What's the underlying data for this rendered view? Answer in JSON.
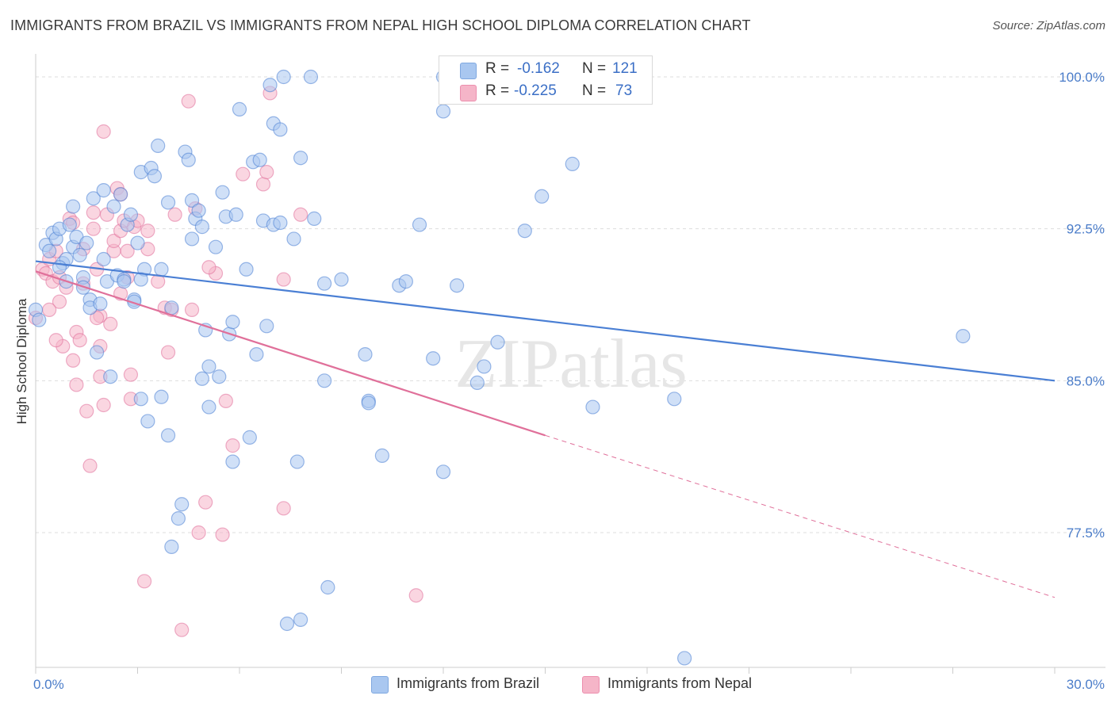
{
  "title": "IMMIGRANTS FROM BRAZIL VS IMMIGRANTS FROM NEPAL HIGH SCHOOL DIPLOMA CORRELATION CHART",
  "source": "Source: ZipAtlas.com",
  "watermark": "ZIPatlas",
  "stats": {
    "r_label": "R =",
    "n_label": "N =",
    "rows": [
      {
        "name": "Immigrants from Brazil",
        "r": "-0.162",
        "n": "121",
        "color": "#a9c7f0"
      },
      {
        "name": "Immigrants from Nepal",
        "r": "-0.225",
        "n": "73",
        "color": "#f5b5c8"
      }
    ]
  },
  "legend": [
    {
      "label": "Immigrants from Brazil",
      "color": "#a9c7f0"
    },
    {
      "label": "Immigrants from Nepal",
      "color": "#f5b5c8"
    }
  ],
  "chart_data": {
    "type": "scatter",
    "title": "IMMIGRANTS FROM BRAZIL VS IMMIGRANTS FROM NEPAL HIGH SCHOOL DIPLOMA CORRELATION CHART",
    "xlabel": "",
    "ylabel": "High School Diploma",
    "xlim": [
      0,
      30
    ],
    "ylim": [
      70.3,
      101.0
    ],
    "x_tick_labels": [
      {
        "value": 0,
        "label": "0.0%"
      },
      {
        "value": 30,
        "label": "30.0%"
      }
    ],
    "y_tick_labels": [
      {
        "value": 100,
        "label": "100.0%"
      },
      {
        "value": 92.5,
        "label": "92.5%"
      },
      {
        "value": 85,
        "label": "85.0%"
      },
      {
        "value": 77.5,
        "label": "77.5%"
      }
    ],
    "grid": true,
    "series": [
      {
        "name": "Immigrants from Brazil",
        "color": "#4a7fd4",
        "fill": "#a9c7f0",
        "trend": {
          "x0": 0,
          "y0": 90.9,
          "x1": 30,
          "y1": 85.0
        },
        "points": [
          [
            0.0,
            88.5
          ],
          [
            0.1,
            88.0
          ],
          [
            0.3,
            91.7
          ],
          [
            0.4,
            91.4
          ],
          [
            0.5,
            92.3
          ],
          [
            0.6,
            92.0
          ],
          [
            0.7,
            92.5
          ],
          [
            0.8,
            90.8
          ],
          [
            0.9,
            91.0
          ],
          [
            0.9,
            89.9
          ],
          [
            1.0,
            92.7
          ],
          [
            1.1,
            93.6
          ],
          [
            1.1,
            91.6
          ],
          [
            1.2,
            92.1
          ],
          [
            1.3,
            91.2
          ],
          [
            1.4,
            90.1
          ],
          [
            1.5,
            91.8
          ],
          [
            1.6,
            89.0
          ],
          [
            1.6,
            88.6
          ],
          [
            1.7,
            94.0
          ],
          [
            1.8,
            86.4
          ],
          [
            1.9,
            88.8
          ],
          [
            2.0,
            94.4
          ],
          [
            2.0,
            91.0
          ],
          [
            2.1,
            89.9
          ],
          [
            2.3,
            93.6
          ],
          [
            2.4,
            90.2
          ],
          [
            2.5,
            94.2
          ],
          [
            2.6,
            90.0
          ],
          [
            2.6,
            89.9
          ],
          [
            2.7,
            92.7
          ],
          [
            2.8,
            93.2
          ],
          [
            2.9,
            89.0
          ],
          [
            2.9,
            88.9
          ],
          [
            3.0,
            91.8
          ],
          [
            3.1,
            84.1
          ],
          [
            3.1,
            95.3
          ],
          [
            3.2,
            90.5
          ],
          [
            3.3,
            83.0
          ],
          [
            3.4,
            95.5
          ],
          [
            3.5,
            95.1
          ],
          [
            3.6,
            96.6
          ],
          [
            3.7,
            84.2
          ],
          [
            3.7,
            90.5
          ],
          [
            3.9,
            93.8
          ],
          [
            3.9,
            82.3
          ],
          [
            4.0,
            88.6
          ],
          [
            4.0,
            76.8
          ],
          [
            4.2,
            78.2
          ],
          [
            4.3,
            78.9
          ],
          [
            4.4,
            96.3
          ],
          [
            4.5,
            95.9
          ],
          [
            4.6,
            93.9
          ],
          [
            4.6,
            92.0
          ],
          [
            4.7,
            93.0
          ],
          [
            4.8,
            93.4
          ],
          [
            4.9,
            92.6
          ],
          [
            4.9,
            85.1
          ],
          [
            5.0,
            87.5
          ],
          [
            5.1,
            83.7
          ],
          [
            5.1,
            85.7
          ],
          [
            5.3,
            91.6
          ],
          [
            5.4,
            85.2
          ],
          [
            5.5,
            94.3
          ],
          [
            5.6,
            93.1
          ],
          [
            5.7,
            87.3
          ],
          [
            5.8,
            87.9
          ],
          [
            5.8,
            81.0
          ],
          [
            5.9,
            93.2
          ],
          [
            6.0,
            98.4
          ],
          [
            6.2,
            90.5
          ],
          [
            6.3,
            82.2
          ],
          [
            6.4,
            95.8
          ],
          [
            6.5,
            86.3
          ],
          [
            6.6,
            95.9
          ],
          [
            6.7,
            92.9
          ],
          [
            6.8,
            87.7
          ],
          [
            6.9,
            99.6
          ],
          [
            7.0,
            92.7
          ],
          [
            7.2,
            92.8
          ],
          [
            7.0,
            97.7
          ],
          [
            7.2,
            97.4
          ],
          [
            7.3,
            100.0
          ],
          [
            7.6,
            92.0
          ],
          [
            7.7,
            81.0
          ],
          [
            7.8,
            96.0
          ],
          [
            8.1,
            100.0
          ],
          [
            8.2,
            93.0
          ],
          [
            8.5,
            85.0
          ],
          [
            8.5,
            89.8
          ],
          [
            8.6,
            74.8
          ],
          [
            9.0,
            90.0
          ],
          [
            9.7,
            86.3
          ],
          [
            9.8,
            84.0
          ],
          [
            9.8,
            83.9
          ],
          [
            10.2,
            81.3
          ],
          [
            10.7,
            89.7
          ],
          [
            10.9,
            89.9
          ],
          [
            11.3,
            92.7
          ],
          [
            11.7,
            86.1
          ],
          [
            12.0,
            100.0
          ],
          [
            12.0,
            98.3
          ],
          [
            12.0,
            80.5
          ],
          [
            12.4,
            89.7
          ],
          [
            13.0,
            84.9
          ],
          [
            13.2,
            85.7
          ],
          [
            13.6,
            86.9
          ],
          [
            14.4,
            92.4
          ],
          [
            14.9,
            94.1
          ],
          [
            15.8,
            95.7
          ],
          [
            16.4,
            83.7
          ],
          [
            16.6,
            100.0
          ],
          [
            18.8,
            84.1
          ],
          [
            19.1,
            71.3
          ],
          [
            27.3,
            87.2
          ],
          [
            7.4,
            73.0
          ],
          [
            7.8,
            73.2
          ],
          [
            3.1,
            90.0
          ],
          [
            2.2,
            85.2
          ],
          [
            1.4,
            89.6
          ],
          [
            0.7,
            90.6
          ]
        ]
      },
      {
        "name": "Immigrants from Nepal",
        "color": "#e0709a",
        "fill": "#f5b5c8",
        "trend": {
          "x0": 0,
          "y0": 90.4,
          "x1": 15,
          "y1": 82.3
        },
        "trend_ext": {
          "x0": 15,
          "y0": 82.3,
          "x1": 30,
          "y1": 74.3
        },
        "points": [
          [
            0.0,
            88.1
          ],
          [
            0.2,
            90.5
          ],
          [
            0.3,
            90.3
          ],
          [
            0.4,
            91.0
          ],
          [
            0.5,
            89.9
          ],
          [
            0.6,
            91.4
          ],
          [
            0.7,
            90.1
          ],
          [
            0.7,
            88.9
          ],
          [
            0.8,
            86.7
          ],
          [
            0.9,
            89.6
          ],
          [
            1.0,
            93.0
          ],
          [
            1.1,
            86.0
          ],
          [
            1.1,
            92.8
          ],
          [
            1.2,
            87.4
          ],
          [
            1.3,
            87.0
          ],
          [
            1.4,
            91.5
          ],
          [
            1.4,
            89.8
          ],
          [
            1.5,
            83.5
          ],
          [
            1.6,
            80.8
          ],
          [
            1.7,
            93.3
          ],
          [
            1.7,
            92.5
          ],
          [
            1.8,
            90.5
          ],
          [
            1.9,
            88.2
          ],
          [
            1.9,
            86.7
          ],
          [
            1.9,
            85.2
          ],
          [
            2.0,
            83.8
          ],
          [
            2.0,
            97.3
          ],
          [
            2.1,
            93.2
          ],
          [
            2.2,
            87.8
          ],
          [
            2.3,
            91.4
          ],
          [
            2.3,
            91.9
          ],
          [
            2.4,
            94.5
          ],
          [
            2.5,
            92.4
          ],
          [
            2.5,
            89.3
          ],
          [
            2.6,
            92.9
          ],
          [
            2.7,
            91.4
          ],
          [
            2.7,
            90.1
          ],
          [
            2.8,
            84.1
          ],
          [
            2.9,
            92.6
          ],
          [
            3.0,
            92.9
          ],
          [
            3.2,
            75.1
          ],
          [
            3.3,
            91.5
          ],
          [
            3.3,
            92.4
          ],
          [
            3.8,
            88.6
          ],
          [
            3.9,
            86.4
          ],
          [
            4.0,
            88.5
          ],
          [
            4.1,
            93.2
          ],
          [
            4.3,
            72.7
          ],
          [
            4.5,
            98.8
          ],
          [
            4.6,
            88.5
          ],
          [
            4.7,
            93.5
          ],
          [
            4.8,
            77.5
          ],
          [
            5.0,
            79.0
          ],
          [
            5.3,
            90.3
          ],
          [
            5.5,
            77.4
          ],
          [
            5.6,
            84.0
          ],
          [
            5.8,
            81.8
          ],
          [
            6.1,
            95.2
          ],
          [
            6.7,
            94.7
          ],
          [
            6.9,
            99.2
          ],
          [
            6.8,
            95.3
          ],
          [
            7.3,
            90.0
          ],
          [
            7.3,
            78.7
          ],
          [
            7.8,
            93.2
          ],
          [
            11.2,
            74.4
          ],
          [
            2.5,
            94.2
          ],
          [
            1.8,
            88.1
          ],
          [
            0.6,
            87.0
          ],
          [
            0.4,
            88.5
          ],
          [
            3.6,
            89.9
          ],
          [
            1.2,
            84.8
          ],
          [
            2.8,
            85.3
          ],
          [
            5.1,
            90.6
          ]
        ]
      }
    ]
  }
}
